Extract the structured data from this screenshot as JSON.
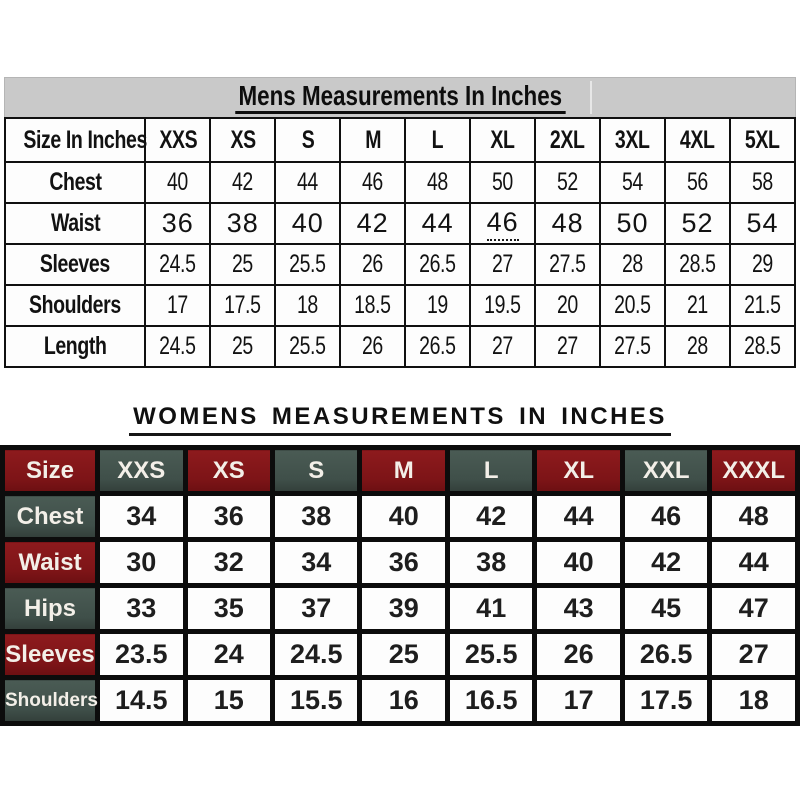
{
  "chart_data": [
    {
      "type": "table",
      "title": "Mens Measurements In Inches",
      "columns": [
        "Size In Inches",
        "XXS",
        "XS",
        "S",
        "M",
        "L",
        "XL",
        "2XL",
        "3XL",
        "4XL",
        "5XL"
      ],
      "rows": [
        {
          "label": "Chest",
          "values": [
            "40",
            "42",
            "44",
            "46",
            "48",
            "50",
            "52",
            "54",
            "56",
            "58"
          ]
        },
        {
          "label": "Waist",
          "values": [
            "36",
            "38",
            "40",
            "42",
            "44",
            "46",
            "48",
            "50",
            "52",
            "54"
          ],
          "wide": true,
          "underline_index": 5
        },
        {
          "label": "Sleeves",
          "values": [
            "24.5",
            "25",
            "25.5",
            "26",
            "26.5",
            "27",
            "27.5",
            "28",
            "28.5",
            "29"
          ]
        },
        {
          "label": "Shoulders",
          "values": [
            "17",
            "17.5",
            "18",
            "18.5",
            "19",
            "19.5",
            "20",
            "20.5",
            "21",
            "21.5"
          ]
        },
        {
          "label": "Length",
          "values": [
            "24.5",
            "25",
            "25.5",
            "26",
            "26.5",
            "27",
            "27",
            "27.5",
            "28",
            "28.5"
          ]
        }
      ]
    },
    {
      "type": "table",
      "title": "WOMENS MEASUREMENTS IN INCHES",
      "columns": [
        "Size",
        "XXS",
        "XS",
        "S",
        "M",
        "L",
        "XL",
        "XXL",
        "XXXL"
      ],
      "rows": [
        {
          "label": "Chest",
          "values": [
            "34",
            "36",
            "38",
            "40",
            "42",
            "44",
            "46",
            "48"
          ]
        },
        {
          "label": "Waist",
          "values": [
            "30",
            "32",
            "34",
            "36",
            "38",
            "40",
            "42",
            "44"
          ]
        },
        {
          "label": "Hips",
          "values": [
            "33",
            "35",
            "37",
            "39",
            "41",
            "43",
            "45",
            "47"
          ]
        },
        {
          "label": "Sleeves",
          "values": [
            "23.5",
            "24",
            "24.5",
            "25",
            "25.5",
            "26",
            "26.5",
            "27"
          ]
        },
        {
          "label": "Shoulders",
          "values": [
            "14.5",
            "15",
            "15.5",
            "16",
            "16.5",
            "17",
            "17.5",
            "18"
          ]
        }
      ]
    }
  ],
  "colors": {
    "titlebar_gray": "#c9c9c9",
    "maroon": "#7d1417",
    "maroon_light": "#8d1a1d",
    "green": "#3f4f49",
    "green_light": "#4a5b54",
    "header_text": "#f3efe8",
    "grid_black": "#0c0c0c"
  }
}
